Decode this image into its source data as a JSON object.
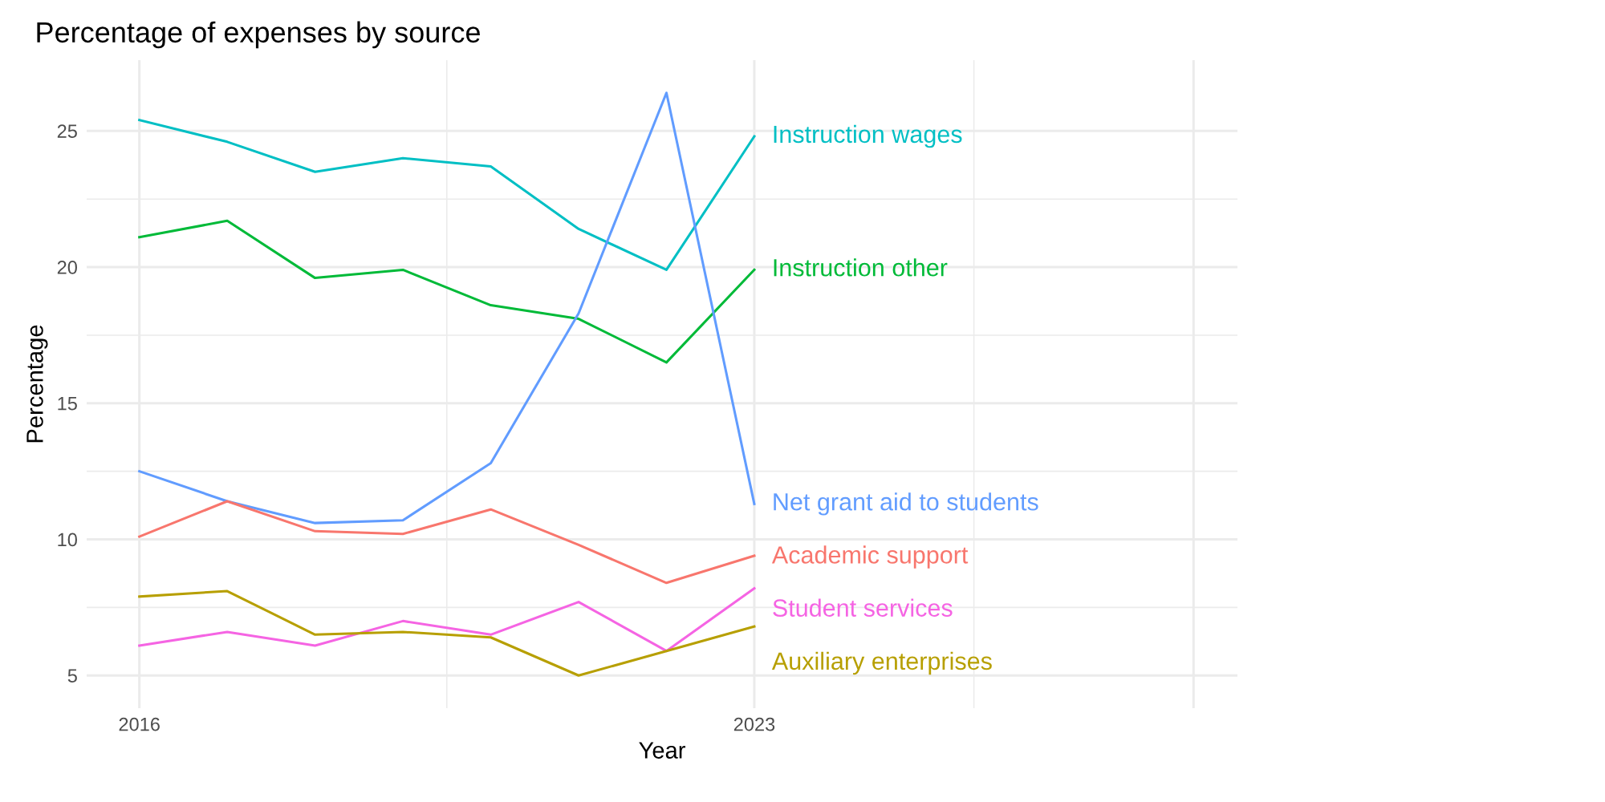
{
  "chart_data": {
    "type": "line",
    "title": "Percentage of expenses by source",
    "xlabel": "Year",
    "ylabel": "Percentage",
    "x": [
      2016,
      2017,
      2018,
      2019,
      2020,
      2021,
      2022,
      2023
    ],
    "series": [
      {
        "name": "Instruction wages",
        "color": "#00BFC4",
        "values": [
          25.4,
          24.6,
          23.5,
          24.0,
          23.7,
          21.4,
          19.9,
          24.8
        ]
      },
      {
        "name": "Instruction other",
        "color": "#00BA38",
        "values": [
          21.1,
          21.7,
          19.6,
          19.9,
          18.6,
          18.1,
          16.5,
          19.9
        ]
      },
      {
        "name": "Net grant aid to students",
        "color": "#619CFF",
        "values": [
          12.5,
          11.4,
          10.6,
          10.7,
          12.8,
          18.3,
          26.4,
          11.3
        ]
      },
      {
        "name": "Academic support",
        "color": "#F8766D",
        "values": [
          10.1,
          11.4,
          10.3,
          10.2,
          11.1,
          9.8,
          8.4,
          9.4
        ]
      },
      {
        "name": "Student services",
        "color": "#F564E3",
        "values": [
          6.1,
          6.6,
          6.1,
          7.0,
          6.5,
          7.7,
          5.9,
          8.2
        ]
      },
      {
        "name": "Auxiliary enterprises",
        "color": "#B79F00",
        "values": [
          7.9,
          8.1,
          6.5,
          6.6,
          6.4,
          5.0,
          5.9,
          6.8
        ]
      }
    ],
    "xlim": [
      2015.4,
      2028.5
    ],
    "xticks": [
      2016,
      2023,
      {
        "value": 2028,
        "label": null
      }
    ],
    "ylim": [
      3.8,
      27.6
    ],
    "yticks": [
      5,
      10,
      15,
      20,
      25
    ],
    "grid": true,
    "legend": false,
    "marker": "none",
    "line_style": "solid"
  }
}
